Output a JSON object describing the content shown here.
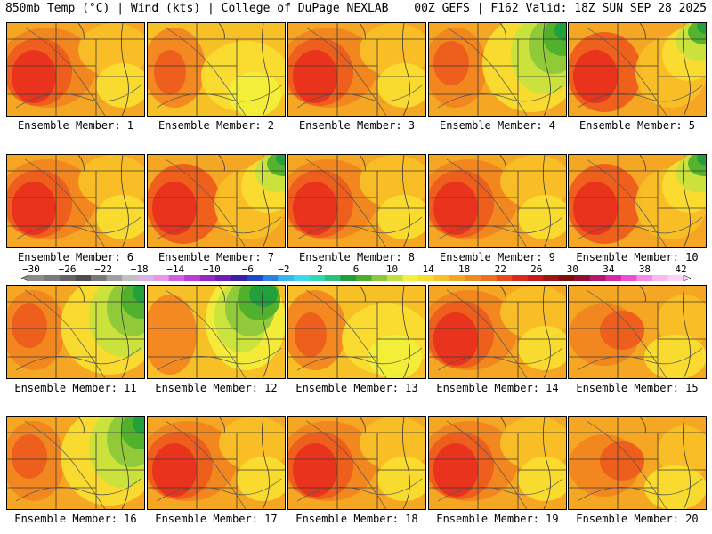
{
  "header": {
    "left": "850mb Temp (°C) | Wind (kts) | College of DuPage NEXLAB",
    "right": "00Z GEFS | F162 Valid: 18Z SUN SEP 28 2025"
  },
  "member_label_prefix": "Ensemble Member: ",
  "members": [
    {
      "id": 1,
      "theme": "hot"
    },
    {
      "id": 2,
      "theme": "mild"
    },
    {
      "id": 3,
      "theme": "hot"
    },
    {
      "id": 4,
      "theme": "cool_ne"
    },
    {
      "id": 5,
      "theme": "hot_green_ne"
    },
    {
      "id": 6,
      "theme": "hot"
    },
    {
      "id": 7,
      "theme": "hot_green_ne"
    },
    {
      "id": 8,
      "theme": "hot"
    },
    {
      "id": 9,
      "theme": "hot"
    },
    {
      "id": 10,
      "theme": "hot_green_ne"
    },
    {
      "id": 11,
      "theme": "cool_ne"
    },
    {
      "id": 12,
      "theme": "cool_center"
    },
    {
      "id": 13,
      "theme": "mild"
    },
    {
      "id": 14,
      "theme": "hot"
    },
    {
      "id": 15,
      "theme": "warm"
    },
    {
      "id": 16,
      "theme": "cool_ne"
    },
    {
      "id": 17,
      "theme": "hot"
    },
    {
      "id": 18,
      "theme": "hot"
    },
    {
      "id": 19,
      "theme": "hot"
    },
    {
      "id": 20,
      "theme": "warm"
    }
  ],
  "colorbar": {
    "ticks": [
      "-30",
      "-26",
      "-22",
      "-18",
      "-14",
      "-10",
      "-6",
      "-2",
      "2",
      "6",
      "10",
      "14",
      "18",
      "22",
      "26",
      "30",
      "34",
      "38",
      "42"
    ],
    "colors": [
      "#8c8c8c",
      "#7a7a7a",
      "#646464",
      "#4e4e4e",
      "#787878",
      "#a0a0a0",
      "#c0c0c0",
      "#d8b4e6",
      "#e29ae8",
      "#d061e6",
      "#b93cd4",
      "#9527c2",
      "#6a1fb0",
      "#3a20a4",
      "#2146c8",
      "#2a82e0",
      "#37b8ec",
      "#3fd8e8",
      "#35d6b4",
      "#2cc27a",
      "#1e9e3e",
      "#4caf2c",
      "#8cc83a",
      "#c4e03e",
      "#f2f23a",
      "#f8dc2e",
      "#f8c027",
      "#f5a623",
      "#f08c1e",
      "#ee6f1d",
      "#e94a1c",
      "#e0281a",
      "#c81a1a",
      "#a01414",
      "#7e0e0e",
      "#8e1030",
      "#b4186a",
      "#d62aa4",
      "#ee4ed0",
      "#f78ae2",
      "#f9b8ee",
      "#fbd6f4"
    ]
  },
  "palette": {
    "red": "#e8301c",
    "redorange": "#ee5a1c",
    "orange": "#f2841f",
    "orange2": "#f5a623",
    "yelloworange": "#f8c027",
    "yellow": "#f8de30",
    "yellow2": "#f2ef3a",
    "lime": "#c7e23e",
    "lgreen": "#8cc83a",
    "green": "#4caf2c",
    "dgreen": "#1e9e3e"
  }
}
